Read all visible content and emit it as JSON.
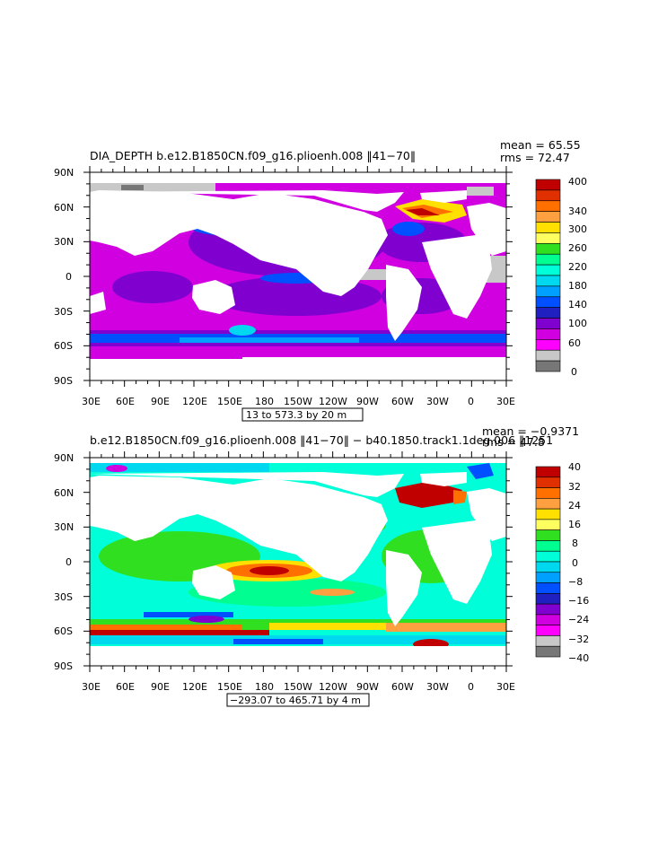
{
  "panels": [
    {
      "title": "DIA_DEPTH  b.e12.B1850CN.f09_g16.plioenh.008  ‖41−70‖",
      "mean_label": "mean = 65.55",
      "rms_label": "rms = 72.47",
      "range_label": "13 to 573.3 by 20 m",
      "colorbar_labels": [
        "400",
        "340",
        "300",
        "260",
        "220",
        "180",
        "140",
        "100",
        "60",
        "0"
      ],
      "colorbar_colors": [
        "#c00000",
        "#e03000",
        "#ff7000",
        "#ffa040",
        "#ffe000",
        "#ffff60",
        "#30e020",
        "#00ff90",
        "#00ffd8",
        "#00d8f0",
        "#00a0ff",
        "#0050ff",
        "#2020c0",
        "#8000d0",
        "#d000e0",
        "#ff00ff",
        "#c8c8c8",
        "#777777"
      ]
    },
    {
      "title": "b.e12.B1850CN.f09_g16.plioenh.008  ‖41−70‖ − b40.1850.track1.1deg.006  ‖1251",
      "mean_label": "mean = −0.9371",
      "rms_label": "rms = 47.8",
      "range_label": "−293.07 to 465.71 by 4 m",
      "colorbar_labels": [
        "40",
        "32",
        "24",
        "16",
        "8",
        "0",
        "−8",
        "−16",
        "−24",
        "−32",
        "−40"
      ],
      "colorbar_colors": [
        "#c00000",
        "#e03000",
        "#ff7000",
        "#ffa040",
        "#ffe000",
        "#ffff60",
        "#30e020",
        "#00ff90",
        "#00ffd8",
        "#00d8f0",
        "#00a0ff",
        "#0050ff",
        "#2020c0",
        "#8000d0",
        "#d000e0",
        "#ff00ff",
        "#c8c8c8",
        "#777777"
      ]
    }
  ],
  "lat_labels": [
    "90N",
    "60N",
    "30N",
    "0",
    "30S",
    "60S",
    "90S"
  ],
  "lon_labels": [
    "30E",
    "60E",
    "90E",
    "120E",
    "150E",
    "180",
    "150W",
    "120W",
    "90W",
    "60W",
    "30W",
    "0",
    "30E"
  ],
  "colors": {
    "land": "#ffffff",
    "ice_gray": "#c8c8c8",
    "dark_gray": "#777777",
    "p1_main": "#d000e0",
    "p1_deep": "#8000d0",
    "p1_blue": "#0050ff",
    "p2_main": "#00ffd8",
    "p2_green": "#30e020",
    "p2_red": "#c00000"
  }
}
